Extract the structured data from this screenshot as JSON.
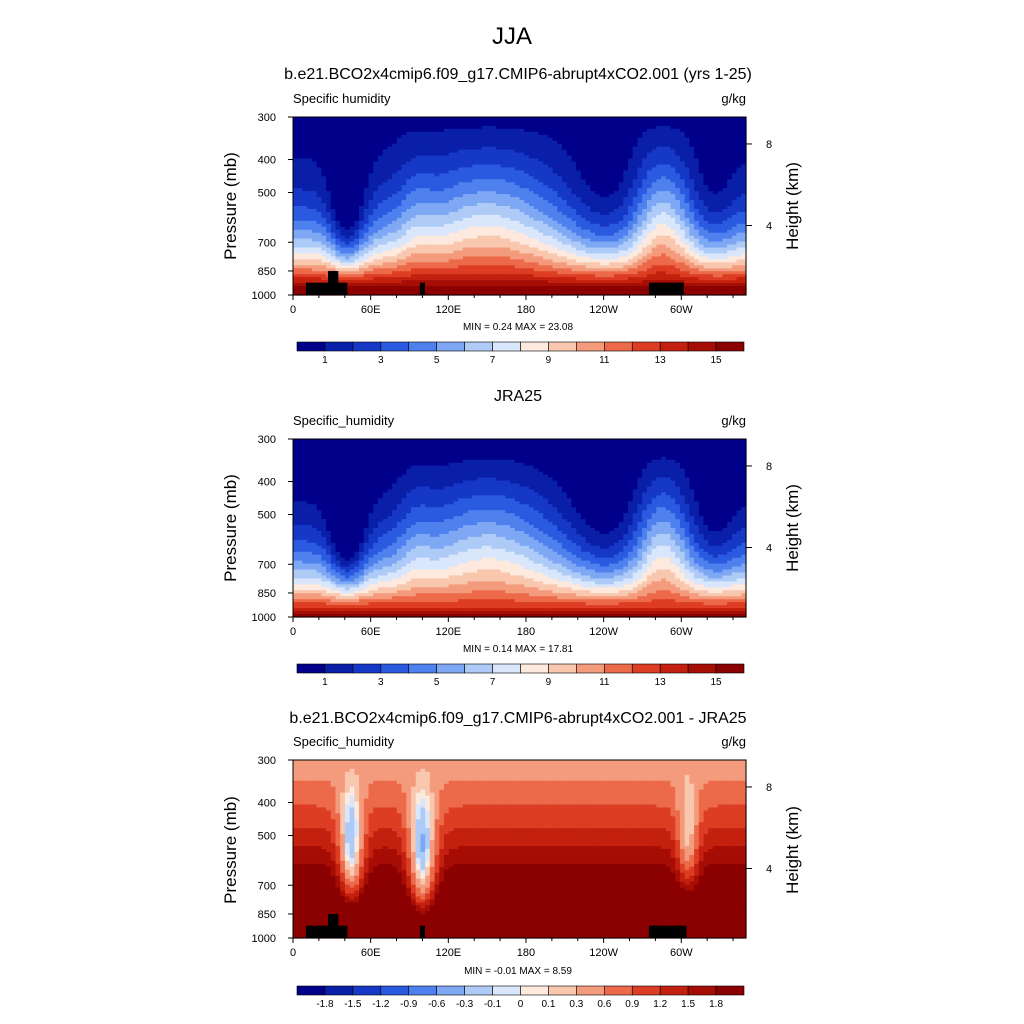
{
  "figure": {
    "title": "JJA"
  },
  "colors": {
    "abs_palette": [
      "#00008b",
      "#0a1fa8",
      "#1638c6",
      "#2a5ae0",
      "#4f81ee",
      "#7ea8f4",
      "#aecbf8",
      "#d9e6fb",
      "#fde9dd",
      "#f9c6ae",
      "#f49b7d",
      "#ec6a4a",
      "#dd3d22",
      "#c4200f",
      "#a60d05",
      "#8b0000"
    ],
    "diff_palette": [
      "#00008b",
      "#0a1fa8",
      "#1638c6",
      "#2a5ae0",
      "#4f81ee",
      "#7ea8f4",
      "#aecbf8",
      "#d9e6fb",
      "#fde9dd",
      "#f9c6ae",
      "#f49b7d",
      "#ec6a4a",
      "#dd3d22",
      "#c4200f",
      "#a60d05",
      "#8b0000"
    ],
    "topography": "#000000"
  },
  "chart_data": [
    {
      "type": "heatmap",
      "title": "b.e21.BCO2x4cmip6.f09_g17.CMIP6-abrupt4xCO2.001 (yrs 1-25)",
      "left_label": "Specific humidity",
      "right_label": "g/kg",
      "ylabel": "Pressure (mb)",
      "ylabel_right": "Height (km)",
      "x_ticks": [
        "0",
        "60E",
        "120E",
        "180",
        "120W",
        "60W"
      ],
      "y_ticks": [
        "300",
        "400",
        "500",
        "700",
        "850",
        "1000"
      ],
      "y_ticks_right": [
        "8",
        "4"
      ],
      "stats": "MIN =   0.24  MAX =  23.08",
      "colorbar_labels": [
        "1",
        "3",
        "5",
        "7",
        "9",
        "11",
        "13",
        "15"
      ],
      "colorbar_levels": [
        1,
        2,
        3,
        4,
        5,
        6,
        7,
        8,
        9,
        10,
        11,
        12,
        13,
        14,
        15
      ],
      "x_range_deg": [
        0,
        350
      ],
      "y_range_mb": [
        300,
        1000
      ],
      "min": 0.24,
      "max": 23.08,
      "topography_blocks": [
        {
          "lon": [
            10,
            42
          ],
          "top_mb": 920
        },
        {
          "lon": [
            27,
            35
          ],
          "top_mb": 850
        },
        {
          "lon": [
            98,
            102
          ],
          "top_mb": 920
        },
        {
          "lon": [
            275,
            302
          ],
          "top_mb": 920
        }
      ]
    },
    {
      "type": "heatmap",
      "title": "JRA25",
      "left_label": "Specific_humidity",
      "right_label": "g/kg",
      "ylabel": "Pressure (mb)",
      "ylabel_right": "Height (km)",
      "x_ticks": [
        "0",
        "60E",
        "120E",
        "180",
        "120W",
        "60W"
      ],
      "y_ticks": [
        "300",
        "400",
        "500",
        "700",
        "850",
        "1000"
      ],
      "y_ticks_right": [
        "8",
        "4"
      ],
      "stats": "MIN =   0.14  MAX =  17.81",
      "colorbar_labels": [
        "1",
        "3",
        "5",
        "7",
        "9",
        "11",
        "13",
        "15"
      ],
      "colorbar_levels": [
        1,
        2,
        3,
        4,
        5,
        6,
        7,
        8,
        9,
        10,
        11,
        12,
        13,
        14,
        15
      ],
      "x_range_deg": [
        0,
        350
      ],
      "y_range_mb": [
        300,
        1000
      ],
      "min": 0.14,
      "max": 17.81,
      "topography_blocks": []
    },
    {
      "type": "heatmap",
      "title": "b.e21.BCO2x4cmip6.f09_g17.CMIP6-abrupt4xCO2.001 - JRA25",
      "left_label": "Specific_humidity",
      "right_label": "g/kg",
      "ylabel": "Pressure (mb)",
      "ylabel_right": "Height (km)",
      "x_ticks": [
        "0",
        "60E",
        "120E",
        "180",
        "120W",
        "60W"
      ],
      "y_ticks": [
        "300",
        "400",
        "500",
        "700",
        "850",
        "1000"
      ],
      "y_ticks_right": [
        "8",
        "4"
      ],
      "stats": "MIN =  -0.01  MAX =   8.59",
      "colorbar_labels": [
        "-1.8",
        "-1.5",
        "-1.2",
        "-0.9",
        "-0.6",
        "-0.3",
        "-0.1",
        "0",
        "0.1",
        "0.3",
        "0.6",
        "0.9",
        "1.2",
        "1.5",
        "1.8"
      ],
      "colorbar_levels": [
        -1.8,
        -1.5,
        -1.2,
        -0.9,
        -0.6,
        -0.3,
        -0.1,
        0,
        0.1,
        0.3,
        0.6,
        0.9,
        1.2,
        1.5,
        1.8
      ],
      "x_range_deg": [
        0,
        350
      ],
      "y_range_mb": [
        300,
        1000
      ],
      "min": -0.01,
      "max": 8.59,
      "topography_blocks": [
        {
          "lon": [
            10,
            42
          ],
          "top_mb": 920
        },
        {
          "lon": [
            27,
            35
          ],
          "top_mb": 850
        },
        {
          "lon": [
            98,
            102
          ],
          "top_mb": 920
        },
        {
          "lon": [
            275,
            304
          ],
          "top_mb": 920
        }
      ]
    }
  ]
}
